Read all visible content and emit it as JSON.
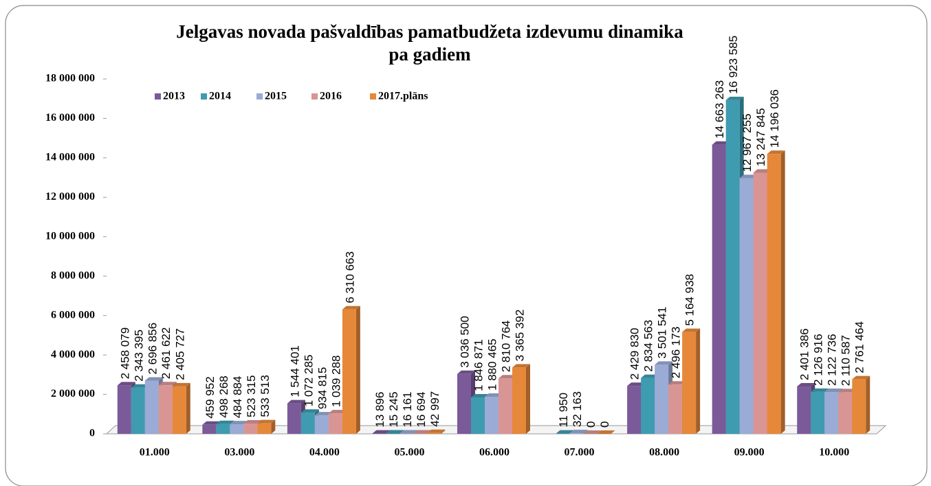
{
  "chart_data": {
    "type": "bar3d",
    "title": "Jelgavas novada pašvaldības pamatbudžeta izdevumu dinamika pa gadiem",
    "categories": [
      "01.000",
      "03.000",
      "04.000",
      "05.000",
      "06.000",
      "07.000",
      "08.000",
      "09.000",
      "10.000"
    ],
    "series": [
      {
        "name": "2013",
        "color": "#7b5a9a",
        "values": [
          2458079,
          459952,
          1544401,
          13896,
          3036500,
          null,
          2429830,
          14663263,
          2401386
        ],
        "value_labels": [
          "2 458 079",
          "459 952",
          "1 544 401",
          "13 896",
          "3 036 500",
          null,
          "2 429 830",
          "14 663 263",
          "2 401 386"
        ]
      },
      {
        "name": "2014",
        "color": "#3f9bb0",
        "values": [
          2343395,
          498268,
          1072285,
          15245,
          1846871,
          11950,
          2834563,
          16923585,
          2126916
        ],
        "value_labels": [
          "2 343 395",
          "498 268",
          "1 072 285",
          "15 245",
          "1 846 871",
          "11 950",
          "2 834 563",
          "16 923 585",
          "2 126 916"
        ]
      },
      {
        "name": "2015",
        "color": "#9aabd6",
        "values": [
          2696856,
          484884,
          934815,
          16161,
          1880465,
          32163,
          3501541,
          12967255,
          2122736
        ],
        "value_labels": [
          "2 696 856",
          "484 884",
          "934 815",
          "16 161",
          "1 880 465",
          "32 163",
          "3 501 541",
          "12 967 255",
          "2 122 736"
        ]
      },
      {
        "name": "2016",
        "color": "#d99594",
        "values": [
          2461622,
          523315,
          1039288,
          16694,
          2810764,
          0,
          2496173,
          13247845,
          2110587
        ],
        "value_labels": [
          "2 461 622",
          "523 315",
          "1 039 288",
          "16 694",
          "2 810 764",
          "0",
          "2 496 173",
          "13 247 845",
          "2 110 587"
        ]
      },
      {
        "name": "2017.plāns",
        "color": "#e6883a",
        "values": [
          2405727,
          533513,
          6310663,
          42997,
          3365392,
          0,
          5164938,
          14196036,
          2761464
        ],
        "value_labels": [
          "2 405 727",
          "533 513",
          "6 310 663",
          "42 997",
          "3 365 392",
          "0",
          "5 164 938",
          "14 196 036",
          "2 761 464"
        ]
      }
    ],
    "ylim": [
      0,
      18000000
    ],
    "yticks": [
      0,
      {
        "value": 2000000,
        "label": "2 000 000"
      },
      {
        "value": 4000000,
        "label": "4 000 000"
      },
      {
        "value": 6000000,
        "label": "6 000 000"
      },
      {
        "value": 8000000,
        "label": "8 000 000"
      },
      {
        "value": 10000000,
        "label": "10 000 000"
      },
      {
        "value": 12000000,
        "label": "12 000 000"
      },
      {
        "value": 14000000,
        "label": "14 000 000"
      },
      {
        "value": 16000000,
        "label": "16 000 000"
      },
      {
        "value": 18000000,
        "label": "18 000 000"
      }
    ]
  }
}
